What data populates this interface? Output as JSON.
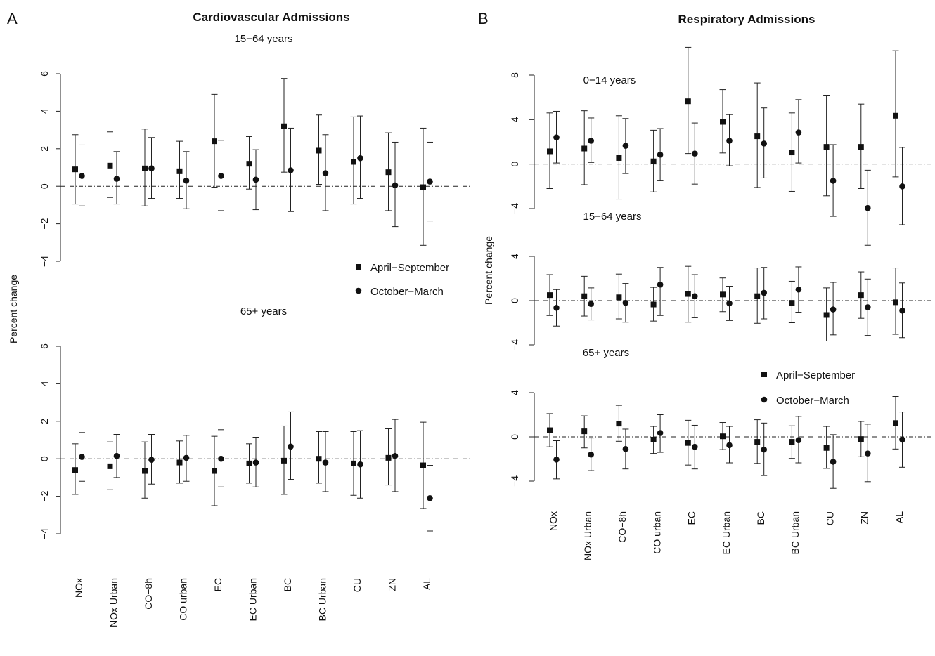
{
  "figure": {
    "panel_a_label": "A",
    "panel_b_label": "B",
    "panel_a_title": "Cardiovascular Admissions",
    "panel_b_title": "Respiratory Admissions",
    "ylabel": "Percent change",
    "legend": {
      "april": "April−September",
      "october": "October−March"
    }
  },
  "chart_data": [
    {
      "type": "scatter",
      "panel": "A",
      "title": "Cardiovascular Admissions",
      "subplot": "15−64 years",
      "ylabel": "Percent change",
      "ylim": [
        -4,
        6
      ],
      "yticks": [
        "−4",
        "−2",
        "0",
        "2",
        "4",
        "6"
      ],
      "categories": [
        "NOx",
        "NOx Urban",
        "CO−8h",
        "CO urban",
        "EC",
        "EC Urban",
        "BC",
        "BC Urban",
        "CU",
        "ZN",
        "AL"
      ],
      "series": [
        {
          "name": "April−September",
          "marker": "square",
          "values": [
            0.9,
            1.1,
            0.95,
            0.8,
            2.4,
            1.2,
            3.2,
            1.9,
            1.3,
            0.75,
            -0.05
          ],
          "lower": [
            -0.95,
            -0.6,
            -1.05,
            -0.65,
            -0.05,
            -0.15,
            0.75,
            0.1,
            -0.95,
            -1.3,
            -3.15
          ],
          "upper": [
            2.75,
            2.9,
            3.05,
            2.4,
            4.9,
            2.65,
            5.75,
            3.8,
            3.7,
            2.85,
            3.1
          ]
        },
        {
          "name": "October−March",
          "marker": "circle",
          "values": [
            0.55,
            0.4,
            0.95,
            0.3,
            0.55,
            0.35,
            0.85,
            0.7,
            1.5,
            0.05,
            0.25
          ],
          "lower": [
            -1.05,
            -0.95,
            -0.65,
            -1.2,
            -1.3,
            -1.25,
            -1.35,
            -1.3,
            -0.65,
            -2.15,
            -1.85
          ],
          "upper": [
            2.2,
            1.85,
            2.6,
            1.85,
            2.45,
            1.95,
            3.1,
            2.75,
            3.75,
            2.35,
            2.35
          ]
        }
      ]
    },
    {
      "type": "scatter",
      "panel": "A",
      "title": "Cardiovascular Admissions",
      "subplot": "65+ years",
      "ylabel": "Percent change",
      "ylim": [
        -4,
        6
      ],
      "yticks": [
        "−4",
        "−2",
        "0",
        "2",
        "4",
        "6"
      ],
      "categories": [
        "NOx",
        "NOx Urban",
        "CO−8h",
        "CO urban",
        "EC",
        "EC Urban",
        "BC",
        "BC Urban",
        "CU",
        "ZN",
        "AL"
      ],
      "series": [
        {
          "name": "April−September",
          "marker": "square",
          "values": [
            -0.6,
            -0.4,
            -0.65,
            -0.2,
            -0.65,
            -0.25,
            -0.1,
            0.0,
            -0.25,
            0.05,
            -0.35
          ],
          "lower": [
            -1.9,
            -1.65,
            -2.1,
            -1.3,
            -2.5,
            -1.3,
            -1.9,
            -1.3,
            -1.95,
            -1.4,
            -2.65
          ],
          "upper": [
            0.8,
            0.9,
            0.9,
            0.95,
            1.2,
            0.8,
            1.75,
            1.45,
            1.45,
            1.6,
            1.95
          ]
        },
        {
          "name": "October−March",
          "marker": "circle",
          "values": [
            0.1,
            0.15,
            -0.05,
            0.05,
            0.0,
            -0.2,
            0.65,
            -0.2,
            -0.3,
            0.15,
            -2.1
          ],
          "lower": [
            -1.2,
            -1.0,
            -1.35,
            -1.2,
            -1.5,
            -1.5,
            -1.1,
            -1.75,
            -2.1,
            -1.75,
            -3.85
          ],
          "upper": [
            1.4,
            1.3,
            1.3,
            1.25,
            1.55,
            1.15,
            2.5,
            1.45,
            1.5,
            2.1,
            -0.35
          ]
        }
      ]
    },
    {
      "type": "scatter",
      "panel": "B",
      "title": "Respiratory Admissions",
      "subplot": "0−14 years",
      "ylabel": "Percent change",
      "ylim": [
        -4,
        8
      ],
      "yticks": [
        "−4",
        "0",
        "4",
        "8"
      ],
      "categories": [
        "NOx",
        "NOx Urban",
        "CO−8h",
        "CO urban",
        "EC",
        "EC Urban",
        "BC",
        "BC Urban",
        "CU",
        "ZN",
        "AL"
      ],
      "series": [
        {
          "name": "April−September",
          "marker": "square",
          "values": [
            1.15,
            1.4,
            0.55,
            0.25,
            5.65,
            3.8,
            2.5,
            1.05,
            1.55,
            1.55,
            4.35
          ],
          "lower": [
            -2.2,
            -1.85,
            -3.15,
            -2.5,
            0.95,
            1.0,
            -2.1,
            -2.45,
            -2.85,
            -2.2,
            -1.15
          ],
          "upper": [
            4.6,
            4.8,
            4.35,
            3.05,
            10.5,
            6.7,
            7.3,
            4.6,
            6.2,
            5.4,
            10.2
          ]
        },
        {
          "name": "October−March",
          "marker": "circle",
          "values": [
            2.4,
            2.1,
            1.65,
            0.85,
            0.95,
            2.1,
            1.85,
            2.85,
            -1.5,
            -3.95,
            -2.0
          ],
          "lower": [
            0.1,
            0.15,
            -0.85,
            -1.45,
            -1.8,
            -0.15,
            -1.25,
            0.1,
            -4.7,
            -7.3,
            -5.45
          ],
          "upper": [
            4.75,
            4.15,
            4.1,
            3.2,
            3.7,
            4.45,
            5.05,
            5.8,
            1.75,
            -0.55,
            1.5
          ]
        }
      ]
    },
    {
      "type": "scatter",
      "panel": "B",
      "title": "Respiratory Admissions",
      "subplot": "15−64 years",
      "ylabel": "Percent change",
      "ylim": [
        -4,
        4
      ],
      "yticks": [
        "−4",
        "0",
        "4"
      ],
      "categories": [
        "NOx",
        "NOx Urban",
        "CO−8h",
        "CO urban",
        "EC",
        "EC Urban",
        "BC",
        "BC Urban",
        "CU",
        "ZN",
        "AL"
      ],
      "series": [
        {
          "name": "April−September",
          "marker": "square",
          "values": [
            0.5,
            0.4,
            0.3,
            -0.35,
            0.6,
            0.55,
            0.4,
            -0.2,
            -1.3,
            0.5,
            -0.15
          ],
          "lower": [
            -1.35,
            -1.4,
            -1.65,
            -1.85,
            -1.95,
            -1.0,
            -2.05,
            -2.0,
            -3.65,
            -1.6,
            -3.05
          ],
          "upper": [
            2.35,
            2.2,
            2.4,
            1.2,
            3.1,
            2.05,
            2.95,
            1.75,
            1.15,
            2.6,
            2.95
          ]
        },
        {
          "name": "October−March",
          "marker": "circle",
          "values": [
            -0.65,
            -0.3,
            -0.2,
            1.45,
            0.4,
            -0.25,
            0.7,
            1.0,
            -0.8,
            -0.6,
            -0.9
          ],
          "lower": [
            -2.3,
            -1.75,
            -1.95,
            -1.35,
            -1.55,
            -1.8,
            -1.65,
            -1.05,
            -3.1,
            -3.15,
            -3.35
          ],
          "upper": [
            1.0,
            1.15,
            1.55,
            3.0,
            2.35,
            1.3,
            3.0,
            3.05,
            1.65,
            1.95,
            1.6
          ]
        }
      ]
    },
    {
      "type": "scatter",
      "panel": "B",
      "title": "Respiratory Admissions",
      "subplot": "65+ years",
      "ylabel": "Percent change",
      "ylim": [
        -4,
        4
      ],
      "yticks": [
        "−4",
        "0",
        "4"
      ],
      "categories": [
        "NOx",
        "NOx Urban",
        "CO−8h",
        "CO urban",
        "EC",
        "EC Urban",
        "BC",
        "BC Urban",
        "CU",
        "ZN",
        "AL"
      ],
      "series": [
        {
          "name": "April−September",
          "marker": "square",
          "values": [
            0.6,
            0.5,
            1.2,
            -0.25,
            -0.55,
            0.05,
            -0.45,
            -0.45,
            -1.0,
            -0.2,
            1.25
          ],
          "lower": [
            -0.9,
            -1.0,
            -0.4,
            -1.5,
            -2.55,
            -1.15,
            -2.4,
            -1.95,
            -2.85,
            -1.8,
            -1.1
          ],
          "upper": [
            2.1,
            1.9,
            2.85,
            0.95,
            1.5,
            1.3,
            1.55,
            1.0,
            0.95,
            1.4,
            3.65
          ]
        },
        {
          "name": "October−March",
          "marker": "circle",
          "values": [
            -2.05,
            -1.6,
            -1.1,
            0.35,
            -0.9,
            -0.75,
            -1.15,
            -0.3,
            -2.25,
            -1.5,
            -0.25
          ],
          "lower": [
            -3.8,
            -3.05,
            -2.9,
            -1.4,
            -2.9,
            -2.35,
            -3.5,
            -2.35,
            -4.65,
            -4.05,
            -2.75
          ],
          "upper": [
            -0.35,
            -0.1,
            0.7,
            2.0,
            1.05,
            0.95,
            1.25,
            1.85,
            0.2,
            1.15,
            2.25
          ]
        }
      ]
    }
  ]
}
